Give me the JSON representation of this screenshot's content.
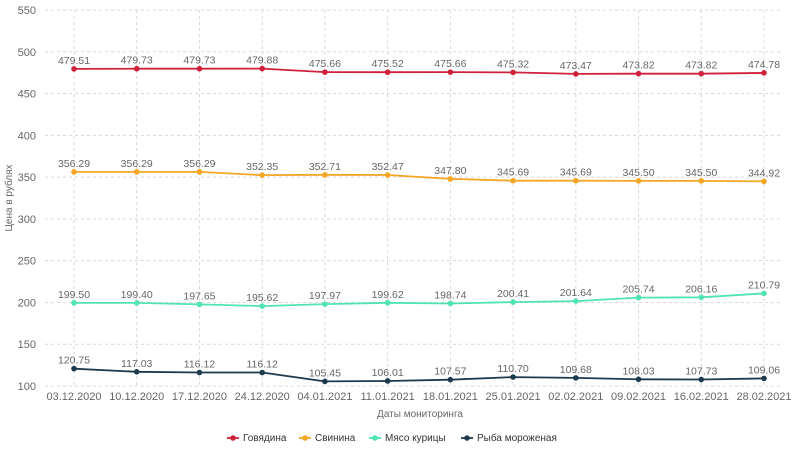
{
  "chart_data": {
    "type": "line",
    "title": "",
    "xlabel": "Даты мониторинга",
    "ylabel": "Цена в рублях",
    "ylim": [
      100,
      550
    ],
    "yticks": [
      100,
      150,
      200,
      250,
      300,
      350,
      400,
      450,
      500,
      550
    ],
    "grid": true,
    "legend_position": "bottom",
    "categories": [
      "03.12.2020",
      "10.12.2020",
      "17.12.2020",
      "24.12.2020",
      "04.01.2021",
      "11.01.2021",
      "18.01.2021",
      "25.01.2021",
      "02.02.2021",
      "09.02.2021",
      "16.02.2021",
      "28.02.2021"
    ],
    "series": [
      {
        "name": "Говядина",
        "color": "#d0213b",
        "values": [
          479.51,
          479.73,
          479.73,
          479.88,
          475.66,
          475.52,
          475.66,
          475.32,
          473.47,
          473.82,
          473.82,
          474.78
        ],
        "labels": [
          "479.51",
          "479.73",
          "479.73",
          "479.88",
          "475.66",
          "475.52",
          "475.66",
          "475.32",
          "473.47",
          "473.82",
          "473.82",
          "474.78"
        ]
      },
      {
        "name": "Свинина",
        "color": "#f5a623",
        "values": [
          356.29,
          356.29,
          356.29,
          352.35,
          352.71,
          352.47,
          347.8,
          345.69,
          345.69,
          345.5,
          345.5,
          344.92
        ],
        "labels": [
          "356.29",
          "356.29",
          "356.29",
          "352.35",
          "352.71",
          "352.47",
          "347.80",
          "345.69",
          "345.69",
          "345.50",
          "345.50",
          "344.92"
        ]
      },
      {
        "name": "Мясо курицы",
        "color": "#4fe3b6",
        "values": [
          199.5,
          199.4,
          197.65,
          195.62,
          197.97,
          199.62,
          198.74,
          200.41,
          201.64,
          205.74,
          206.16,
          210.79
        ],
        "labels": [
          "199.50",
          "199.40",
          "197.65",
          "195.62",
          "197.97",
          "199.62",
          "198.74",
          "200.41",
          "201.64",
          "205.74",
          "206.16",
          "210.79"
        ]
      },
      {
        "name": "Рыба мороженая",
        "color": "#1e3a4f",
        "values": [
          120.75,
          117.03,
          116.12,
          116.12,
          105.45,
          106.01,
          107.57,
          110.7,
          109.68,
          108.03,
          107.73,
          109.06
        ],
        "labels": [
          "120.75",
          "117.03",
          "116.12",
          "116.12",
          "105.45",
          "106.01",
          "107.57",
          "110.70",
          "109.68",
          "108.03",
          "107.73",
          "109.06"
        ]
      }
    ]
  }
}
